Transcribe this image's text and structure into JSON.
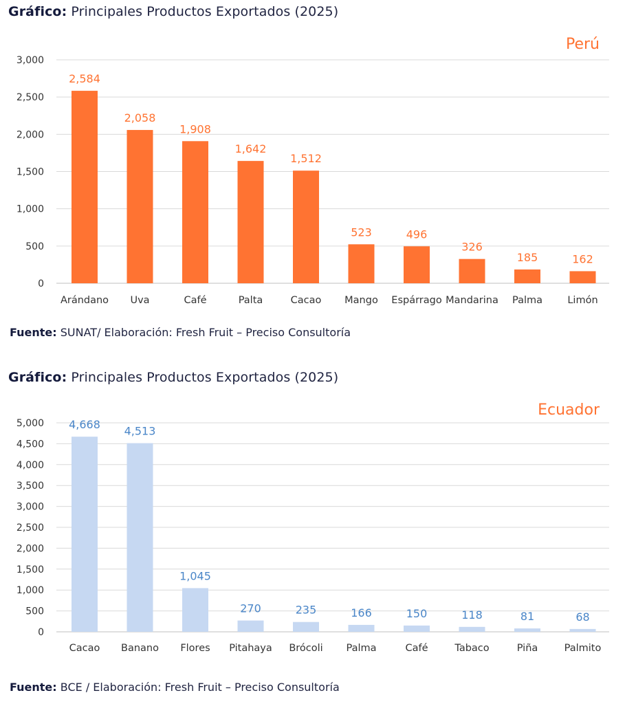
{
  "charts": [
    {
      "heading_bold": "Gráfico:",
      "heading_text": "Principales Productos Exportados (2025)",
      "source_bold": "Fuente:",
      "source_text": "SUNAT/ Elaboración: Fresh Fruit – Preciso Consultoría"
    },
    {
      "heading_bold": "Gráfico:",
      "heading_text": "Principales Productos Exportados (2025)",
      "source_bold": "Fuente:",
      "source_text": "BCE / Elaboración: Fresh Fruit – Preciso Consultoría"
    }
  ],
  "colors": {
    "peru_bar": "#ff7332",
    "peru_label": "#ff7332",
    "ecuador_bar": "#c6d8f2",
    "ecuador_label": "#4a86c8",
    "grid": "#d9d9d9",
    "axis": "#bfbfbf"
  },
  "chart_data": [
    {
      "type": "bar",
      "title": "Perú",
      "categories": [
        "Arándano",
        "Uva",
        "Café",
        "Palta",
        "Cacao",
        "Mango",
        "Espárrago",
        "Mandarina",
        "Palma",
        "Limón"
      ],
      "values": [
        2584,
        2058,
        1908,
        1642,
        1512,
        523,
        496,
        326,
        185,
        162
      ],
      "value_labels": [
        "2,584",
        "2,058",
        "1,908",
        "1,642",
        "1,512",
        "523",
        "496",
        "326",
        "185",
        "162"
      ],
      "yticks": [
        "0",
        "500",
        "1,000",
        "1,500",
        "2,000",
        "2,500",
        "3,000"
      ],
      "ylim": [
        0,
        3000
      ],
      "ytick_step": 500,
      "grid": true
    },
    {
      "type": "bar",
      "title": "Ecuador",
      "categories": [
        "Cacao",
        "Banano",
        "Flores",
        "Pitahaya",
        "Brócoli",
        "Palma",
        "Café",
        "Tabaco",
        "Piña",
        "Palmito"
      ],
      "values": [
        4668,
        4513,
        1045,
        270,
        235,
        166,
        150,
        118,
        81,
        68
      ],
      "value_labels": [
        "4,668",
        "4,513",
        "1,045",
        "270",
        "235",
        "166",
        "150",
        "118",
        "81",
        "68"
      ],
      "yticks": [
        "0",
        "500",
        "1,000",
        "1,500",
        "2,000",
        "2,500",
        "3,000",
        "3,500",
        "4,000",
        "4,500",
        "5,000"
      ],
      "ylim": [
        0,
        5000
      ],
      "ytick_step": 500,
      "grid": true
    }
  ]
}
